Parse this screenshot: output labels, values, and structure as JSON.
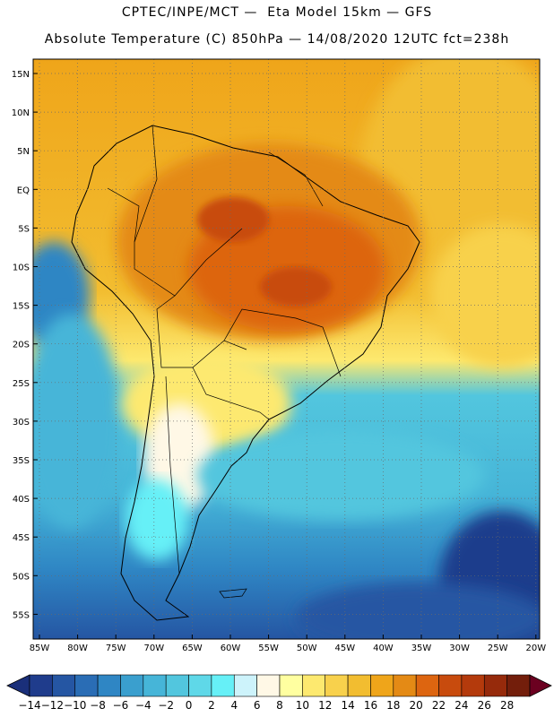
{
  "header": {
    "line1": "CPTEC/INPE/MCT —  Eta Model 15km — GFS",
    "line2": "Absolute Temperature (C) 850hPa — 14/08/2020 12UTC fct=238h"
  },
  "map": {
    "region": "South America",
    "lat_labels": [
      "15N",
      "10N",
      "5N",
      "EQ",
      "5S",
      "10S",
      "15S",
      "20S",
      "25S",
      "30S",
      "35S",
      "40S",
      "45S",
      "50S",
      "55S"
    ],
    "lon_labels": [
      "85W",
      "80W",
      "75W",
      "70W",
      "65W",
      "60W",
      "55W",
      "50W",
      "45W",
      "40W",
      "35W",
      "30W",
      "25W",
      "20W"
    ]
  },
  "colorbar": {
    "labels": [
      "-14",
      "-12",
      "-10",
      "-8",
      "-6",
      "-4",
      "-2",
      "0",
      "2",
      "4",
      "6",
      "8",
      "10",
      "12",
      "14",
      "16",
      "18",
      "20",
      "22",
      "24",
      "26",
      "28"
    ],
    "colors": [
      "#1f3c8c",
      "#2556a3",
      "#2a6db5",
      "#2f86c4",
      "#3a9fce",
      "#46b5d8",
      "#52c6de",
      "#5fd8e8",
      "#66f0f7",
      "#cdf3fb",
      "#fff8e6",
      "#ffffa0",
      "#fde96f",
      "#f8d14c",
      "#f2bd30",
      "#efa51a",
      "#e48a15",
      "#dd6510",
      "#c84b0d",
      "#b43a0c",
      "#962a0b",
      "#731e0b"
    ],
    "under_color": "#1a2f7a",
    "over_color": "#6b0020"
  }
}
